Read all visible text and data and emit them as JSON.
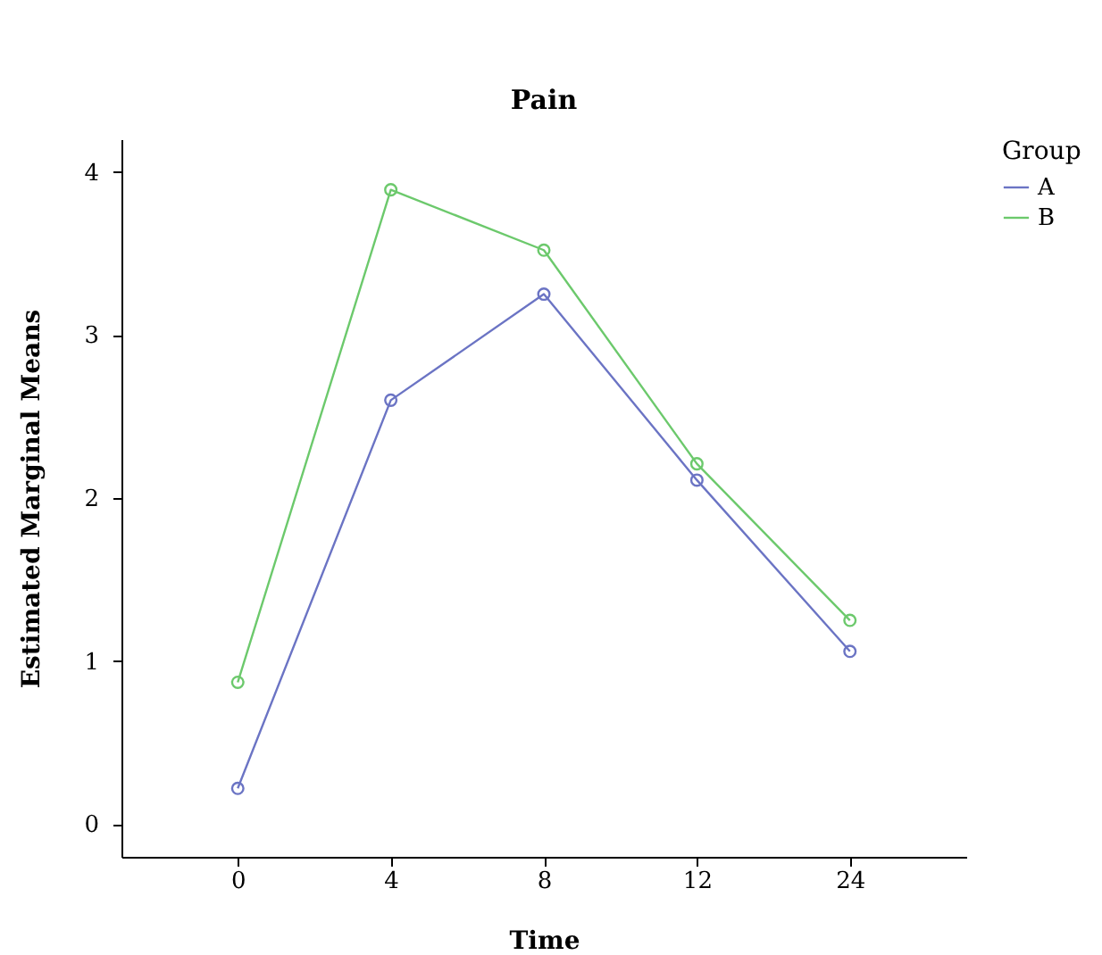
{
  "chart_data": {
    "type": "line",
    "title": "Pain",
    "xlabel": "Time",
    "ylabel": "Estimated Marginal Means",
    "legend_title": "Group",
    "categories": [
      "0",
      "4",
      "8",
      "12",
      "24"
    ],
    "ylim": [
      -0.2,
      4.2
    ],
    "yticks": [
      0,
      1,
      2,
      3,
      4
    ],
    "grid": false,
    "legend": "top right",
    "marker": "circle",
    "line_style": "solid",
    "series": [
      {
        "name": "A",
        "color": "#6b74c4",
        "values": [
          0.22,
          2.6,
          3.25,
          2.11,
          1.06
        ]
      },
      {
        "name": "B",
        "color": "#6cc96c",
        "values": [
          0.87,
          3.89,
          3.52,
          2.21,
          1.25
        ]
      }
    ]
  }
}
